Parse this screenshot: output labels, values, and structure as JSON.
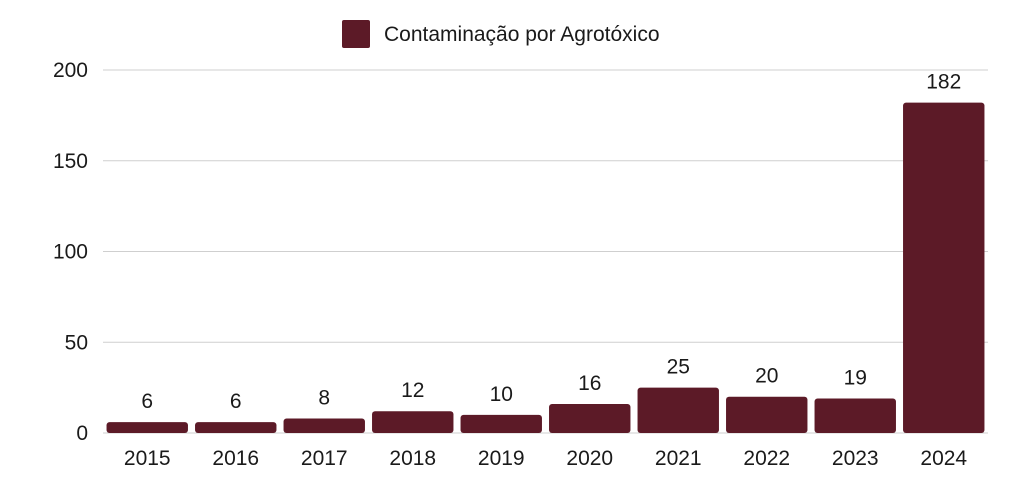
{
  "chart_data": {
    "type": "bar",
    "categories": [
      "2015",
      "2016",
      "2017",
      "2018",
      "2019",
      "2020",
      "2021",
      "2022",
      "2023",
      "2024"
    ],
    "series": [
      {
        "name": "Contaminação por Agrotóxico",
        "values": [
          6,
          6,
          8,
          12,
          10,
          16,
          25,
          20,
          19,
          182
        ],
        "color": "#5c1a27"
      }
    ],
    "title": "",
    "xlabel": "",
    "ylabel": "",
    "ylim": [
      0,
      200
    ],
    "yticks": [
      0,
      50,
      100,
      150,
      200
    ],
    "grid": true,
    "legend": "top-center",
    "data_labels": true
  }
}
